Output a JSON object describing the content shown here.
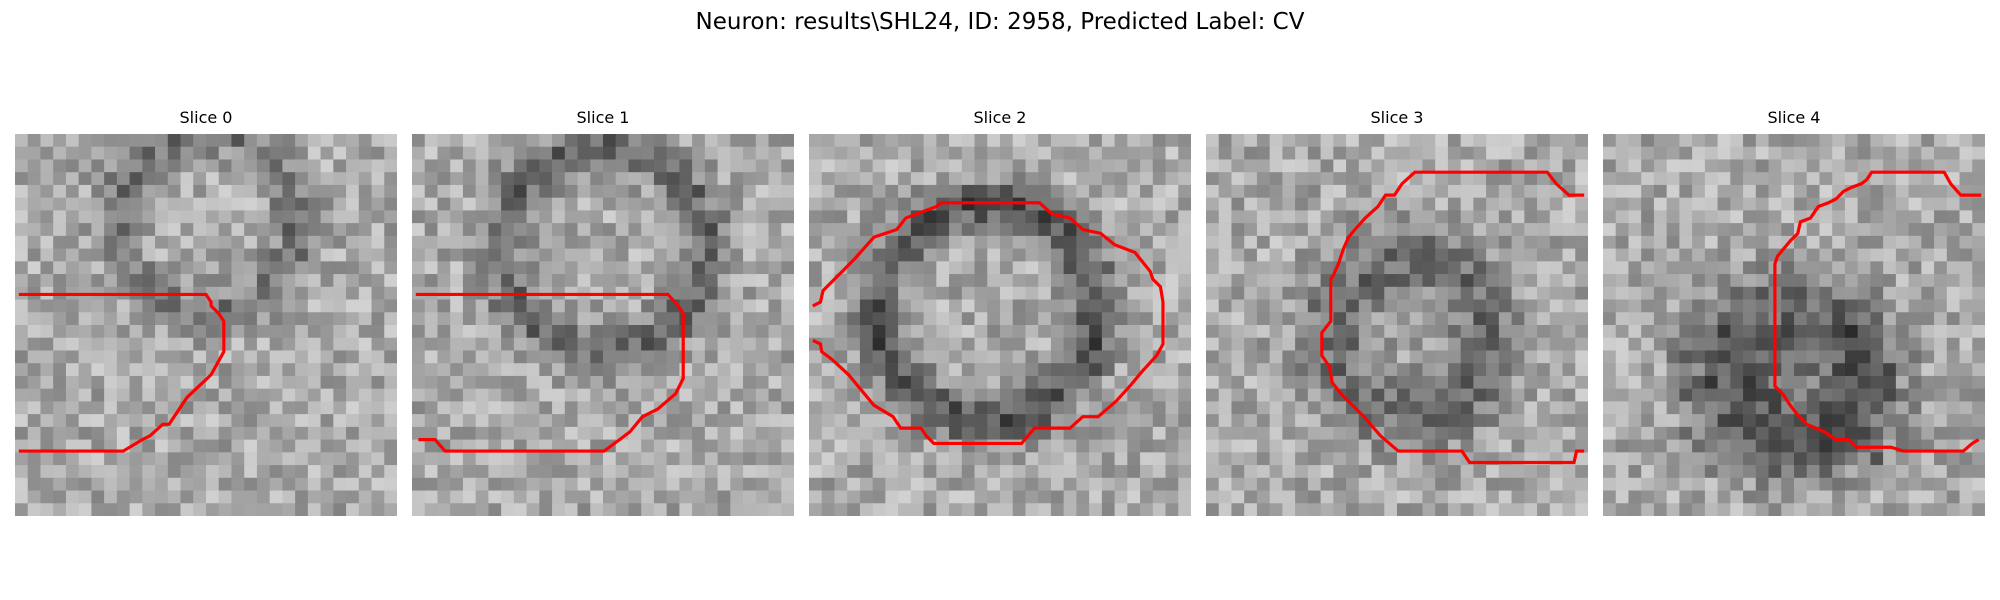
{
  "title": "Neuron: results\\SHL24, ID: 2958, Predicted Label: CV",
  "overlay_color": "#ff0000",
  "colormap": "grayscale",
  "panels": [
    {
      "label": "Slice 0"
    },
    {
      "label": "Slice 1"
    },
    {
      "label": "Slice 2"
    },
    {
      "label": "Slice 3"
    },
    {
      "label": "Slice 4"
    }
  ]
}
